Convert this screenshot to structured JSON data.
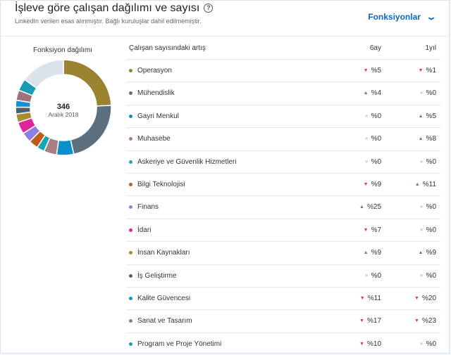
{
  "header": {
    "title": "İşleve göre çalışan dağılımı ve sayısı",
    "help_icon": "?",
    "subtitle": "LinkedIn verileri esas alınmıştır. Bağlı kuruluşlar dahil edilmemiştir.",
    "dropdown_label": "Fonksiyonlar"
  },
  "donut": {
    "title": "Fonksiyon dağılımı",
    "total": "346",
    "date": "Aralık 2018",
    "segments": [
      {
        "color": "#9b8230",
        "value": 84
      },
      {
        "color": "#5b6f7e",
        "value": 77
      },
      {
        "color": "#0a91cc",
        "value": 20
      },
      {
        "color": "#a87e83",
        "value": 15
      },
      {
        "color": "#17a6b5",
        "value": 9
      },
      {
        "color": "#c05a18",
        "value": 11
      },
      {
        "color": "#8f7fe0",
        "value": 12
      },
      {
        "color": "#e0249b",
        "value": 14
      },
      {
        "color": "#a98c2c",
        "value": 10
      },
      {
        "color": "#4b6070",
        "value": 8
      },
      {
        "color": "#1592d2",
        "value": 8
      },
      {
        "color": "#a1727c",
        "value": 12
      },
      {
        "color": "#1a9ab5",
        "value": 14
      },
      {
        "color": "#dbe3ea",
        "value": 52
      }
    ]
  },
  "table": {
    "col_name": "Çalışan sayısındaki artış",
    "col_6m": "6ay",
    "col_1y": "1yıl",
    "rows": [
      {
        "name": "Operasyon",
        "color": "#9b8230",
        "v6": "%5",
        "d6": "down",
        "v1": "%1",
        "d1": "down"
      },
      {
        "name": "Mühendislik",
        "color": "#5b6f7e",
        "v6": "%4",
        "d6": "up",
        "v1": "%0",
        "d1": "flat"
      },
      {
        "name": "Gayri Menkul",
        "color": "#0a91cc",
        "v6": "%0",
        "d6": "flat",
        "v1": "%5",
        "d1": "up"
      },
      {
        "name": "Muhasebe",
        "color": "#a87e83",
        "v6": "%0",
        "d6": "flat",
        "v1": "%8",
        "d1": "up"
      },
      {
        "name": "Askeriye ve Güvenlik Hizmetleri",
        "color": "#17a6b5",
        "v6": "%0",
        "d6": "flat",
        "v1": "%0",
        "d1": "flat"
      },
      {
        "name": "Bilgi Teknolojisi",
        "color": "#c05a18",
        "v6": "%9",
        "d6": "down",
        "v1": "%11",
        "d1": "up"
      },
      {
        "name": "Finans",
        "color": "#8f7fe0",
        "v6": "%25",
        "d6": "up",
        "v1": "%0",
        "d1": "flat"
      },
      {
        "name": "İdari",
        "color": "#e0249b",
        "v6": "%7",
        "d6": "down",
        "v1": "%0",
        "d1": "flat"
      },
      {
        "name": "İnsan Kaynakları",
        "color": "#a98c2c",
        "v6": "%9",
        "d6": "up",
        "v1": "%9",
        "d1": "up"
      },
      {
        "name": "İş Geliştirme",
        "color": "#4b6070",
        "v6": "%0",
        "d6": "flat",
        "v1": "%0",
        "d1": "flat"
      },
      {
        "name": "Kalite Güvencesi",
        "color": "#1592d2",
        "v6": "%11",
        "d6": "down",
        "v1": "%20",
        "d1": "down"
      },
      {
        "name": "Sanat ve Tasarım",
        "color": "#a1727c",
        "v6": "%17",
        "d6": "down",
        "v1": "%23",
        "d1": "down"
      },
      {
        "name": "Program ve Proje Yönetimi",
        "color": "#1a9ab5",
        "v6": "%10",
        "d6": "down",
        "v1": "%0",
        "d1": "flat"
      }
    ]
  }
}
